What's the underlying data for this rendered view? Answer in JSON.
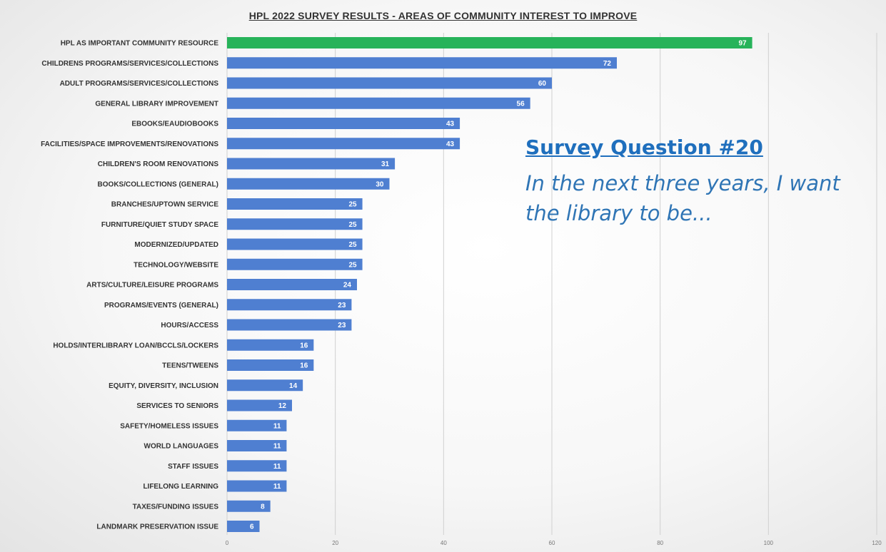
{
  "chart_data": {
    "type": "bar",
    "orientation": "horizontal",
    "title": "HPL 2022  SURVEY RESULTS - AREAS OF COMMUNITY INTEREST TO IMPROVE",
    "categories": [
      "HPL AS IMPORTANT COMMUNITY RESOURCE",
      "CHILDRENS PROGRAMS/SERVICES/COLLECTIONS",
      "ADULT PROGRAMS/SERVICES/COLLECTIONS",
      "GENERAL LIBRARY IMPROVEMENT",
      "EBOOKS/EAUDIOBOOKS",
      "FACILITIES/SPACE IMPROVEMENTS/RENOVATIONS",
      "CHILDREN'S ROOM RENOVATIONS",
      "BOOKS/COLLECTIONS (GENERAL)",
      "BRANCHES/UPTOWN SERVICE",
      "FURNITURE/QUIET STUDY SPACE",
      "MODERNIZED/UPDATED",
      "TECHNOLOGY/WEBSITE",
      "ARTS/CULTURE/LEISURE PROGRAMS",
      "PROGRAMS/EVENTS (GENERAL)",
      "HOURS/ACCESS",
      "HOLDS/INTERLIBRARY LOAN/BCCLS/LOCKERS",
      "TEENS/TWEENS",
      "EQUITY, DIVERSITY, INCLUSION",
      "SERVICES TO SENIORS",
      "SAFETY/HOMELESS ISSUES",
      "WORLD LANGUAGES",
      "STAFF ISSUES",
      "LIFELONG LEARNING",
      "TAXES/FUNDING ISSUES",
      "LANDMARK PRESERVATION ISSUE"
    ],
    "values": [
      97,
      72,
      60,
      56,
      43,
      43,
      31,
      30,
      25,
      25,
      25,
      25,
      24,
      23,
      23,
      16,
      16,
      14,
      12,
      11,
      11,
      11,
      11,
      8,
      6
    ],
    "xlim": [
      0,
      120
    ],
    "xticks": [
      "0",
      "20",
      "40",
      "60",
      "80",
      "100",
      "120"
    ],
    "grid": "vertical",
    "colors": {
      "highlight": "#27b35a",
      "bar": "#4f7fd1",
      "grid": "#d0d0d0",
      "label": "#333333"
    }
  },
  "annotation": {
    "heading": "Survey Question #20",
    "body": "In the next three years, I want the library to be..."
  }
}
